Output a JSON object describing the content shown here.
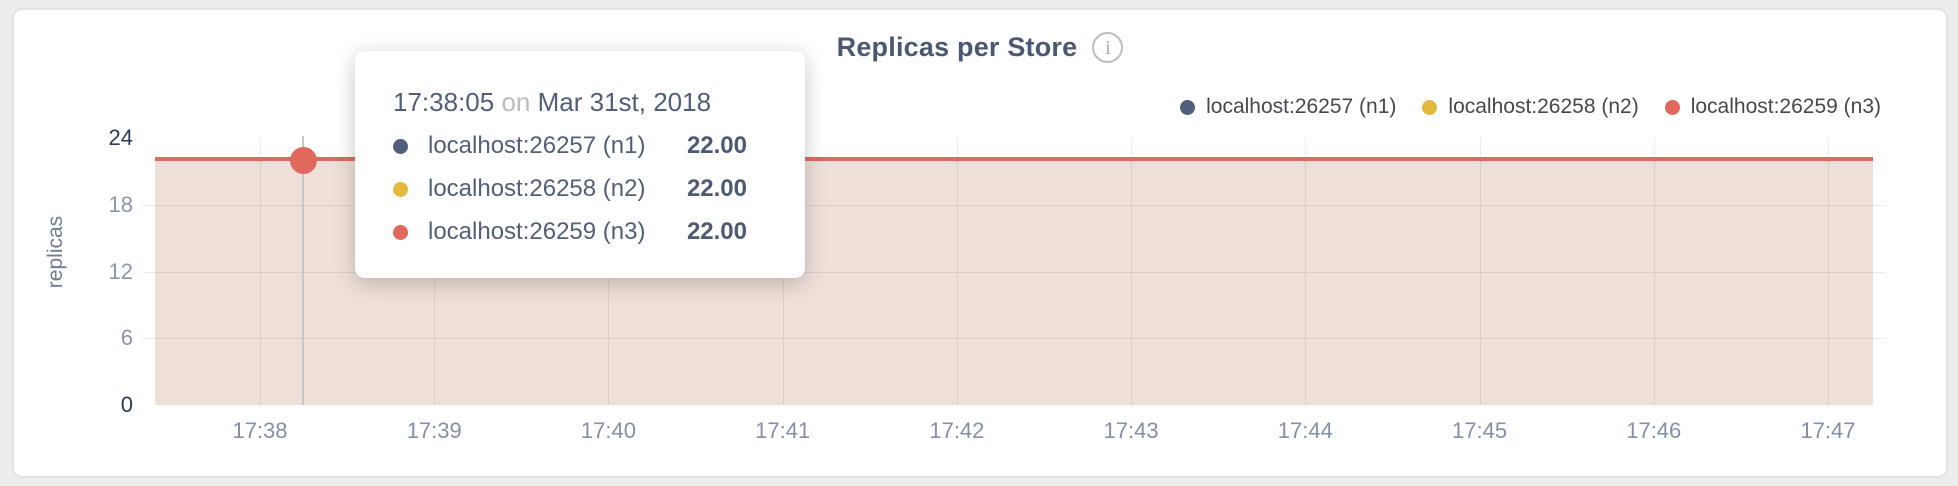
{
  "header": {
    "title": "Replicas per Store",
    "info_glyph": "i"
  },
  "tooltip": {
    "time": "17:38:05",
    "conjunction": "on",
    "date": "Mar 31st, 2018",
    "rows": [
      {
        "label": "localhost:26257 (n1)",
        "value": "22.00",
        "color": "#515f7d"
      },
      {
        "label": "localhost:26258 (n2)",
        "value": "22.00",
        "color": "#e5b840"
      },
      {
        "label": "localhost:26259 (n3)",
        "value": "22.00",
        "color": "#e0685d"
      }
    ]
  },
  "chart_data": {
    "type": "area",
    "title": "Replicas per Store",
    "xlabel": "",
    "ylabel": "replicas",
    "x_ticks": [
      "17:38",
      "17:39",
      "17:40",
      "17:41",
      "17:42",
      "17:43",
      "17:44",
      "17:45",
      "17:46",
      "17:47"
    ],
    "y_ticks": [
      0,
      6,
      12,
      18,
      24
    ],
    "ylim": [
      0,
      24
    ],
    "grid": true,
    "legend_position": "top-right",
    "series": [
      {
        "name": "localhost:26257 (n1)",
        "color": "#515f7d",
        "value": 22
      },
      {
        "name": "localhost:26258 (n2)",
        "color": "#e5b840",
        "value": 22
      },
      {
        "name": "localhost:26259 (n3)",
        "color": "#e0685d",
        "value": 22
      }
    ],
    "note": "all three series are constant at 22 replicas across 17:38-17:47",
    "line_color": "#db6b61",
    "fill_color": "#eee0d9",
    "hover_point": {
      "time": "17:38:05",
      "value": 22
    }
  }
}
